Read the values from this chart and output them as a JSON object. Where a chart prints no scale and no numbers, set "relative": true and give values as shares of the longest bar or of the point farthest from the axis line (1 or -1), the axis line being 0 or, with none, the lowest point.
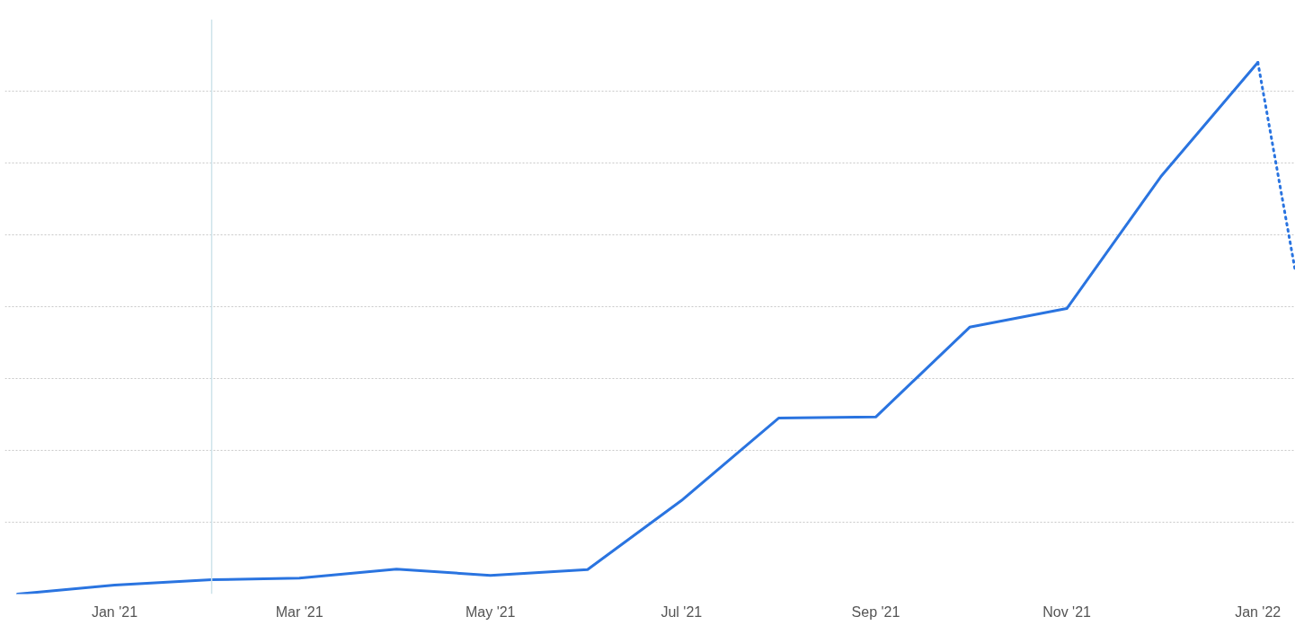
{
  "chart_data": {
    "type": "line",
    "relative": true,
    "grid": "y",
    "marker": "none",
    "xlim": [
      "2020-11-27",
      "2022-01-13"
    ],
    "xticks": [
      {
        "value": "2021-01-01",
        "label": "Jan '21"
      },
      {
        "value": "2021-03-01",
        "label": "Mar '21"
      },
      {
        "value": "2021-05-01",
        "label": "May '21"
      },
      {
        "value": "2021-07-01",
        "label": "Jul '21"
      },
      {
        "value": "2021-09-01",
        "label": "Sep '21"
      },
      {
        "value": "2021-11-01",
        "label": "Nov '21"
      },
      {
        "value": "2022-01-01",
        "label": "Jan '22"
      }
    ],
    "series": [
      {
        "color": "#2a74e0",
        "line_style": "solid",
        "x": [
          "2020-12-01",
          "2021-01-01",
          "2021-02-01",
          "2021-03-01",
          "2021-04-01",
          "2021-05-01",
          "2021-06-01",
          "2021-07-01",
          "2021-08-01",
          "2021-09-01",
          "2021-10-01",
          "2021-11-01",
          "2021-12-01",
          "2022-01-01"
        ],
        "values": [
          0,
          0.017,
          0.027,
          0.03,
          0.047,
          0.035,
          0.046,
          0.176,
          0.331,
          0.333,
          0.502,
          0.537,
          0.785,
          1
        ]
      },
      {
        "color": "#2a74e0",
        "line_style": "dotted",
        "x": [
          "2022-01-01",
          "2022-01-13"
        ],
        "values": [
          1,
          0.606
        ]
      }
    ],
    "ref_lines": [
      {
        "axis": "x",
        "value": "2021-02-01",
        "label": null,
        "color": "#cde3ea"
      }
    ]
  }
}
